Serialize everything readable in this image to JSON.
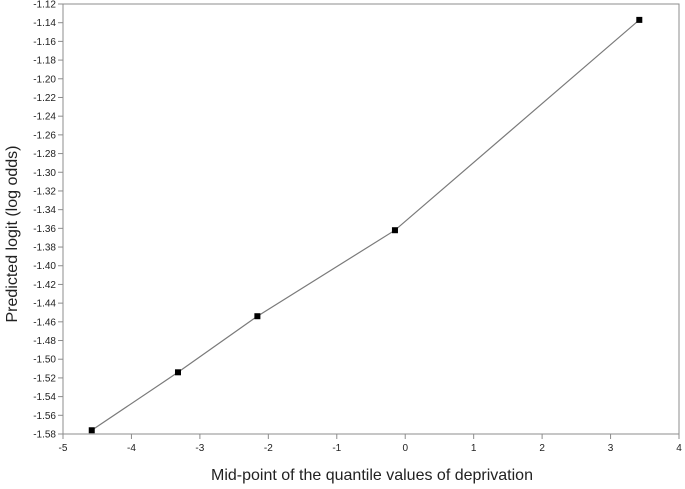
{
  "chart_data": {
    "type": "line",
    "title": "",
    "xlabel": "Mid-point of the quantile values of deprivation",
    "ylabel": "Predicted logit (log odds)",
    "xlim": [
      -5,
      4
    ],
    "ylim": [
      -1.58,
      -1.12
    ],
    "xticks": [
      -5,
      -4,
      -3,
      -2,
      -1,
      0,
      1,
      2,
      3,
      4
    ],
    "yticks": [
      -1.58,
      -1.56,
      -1.54,
      -1.52,
      -1.5,
      -1.48,
      -1.46,
      -1.44,
      -1.42,
      -1.4,
      -1.38,
      -1.36,
      -1.34,
      -1.32,
      -1.3,
      -1.28,
      -1.26,
      -1.24,
      -1.22,
      -1.2,
      -1.18,
      -1.16,
      -1.14,
      -1.12
    ],
    "ytick_labels": [
      "-1.58",
      "-1.56",
      "-1.54",
      "-1.52",
      "-1.50",
      "-1.48",
      "-1.46",
      "-1.44",
      "-1.42",
      "-1.40",
      "-1.38",
      "-1.36",
      "-1.34",
      "-1.32",
      "-1.30",
      "-1.28",
      "-1.26",
      "-1.24",
      "-1.22",
      "-1.20",
      "-1.18",
      "-1.16",
      "-1.14",
      "-1.12"
    ],
    "grid": false,
    "legend": "none",
    "series": [
      {
        "x": [
          -4.58,
          -3.32,
          -2.16,
          -0.15,
          3.42
        ],
        "y": [
          -1.576,
          -1.514,
          -1.454,
          -1.362,
          -1.137
        ],
        "line_color": "#7a7a7a",
        "marker_color": "#000000",
        "marker": "square"
      }
    ]
  }
}
